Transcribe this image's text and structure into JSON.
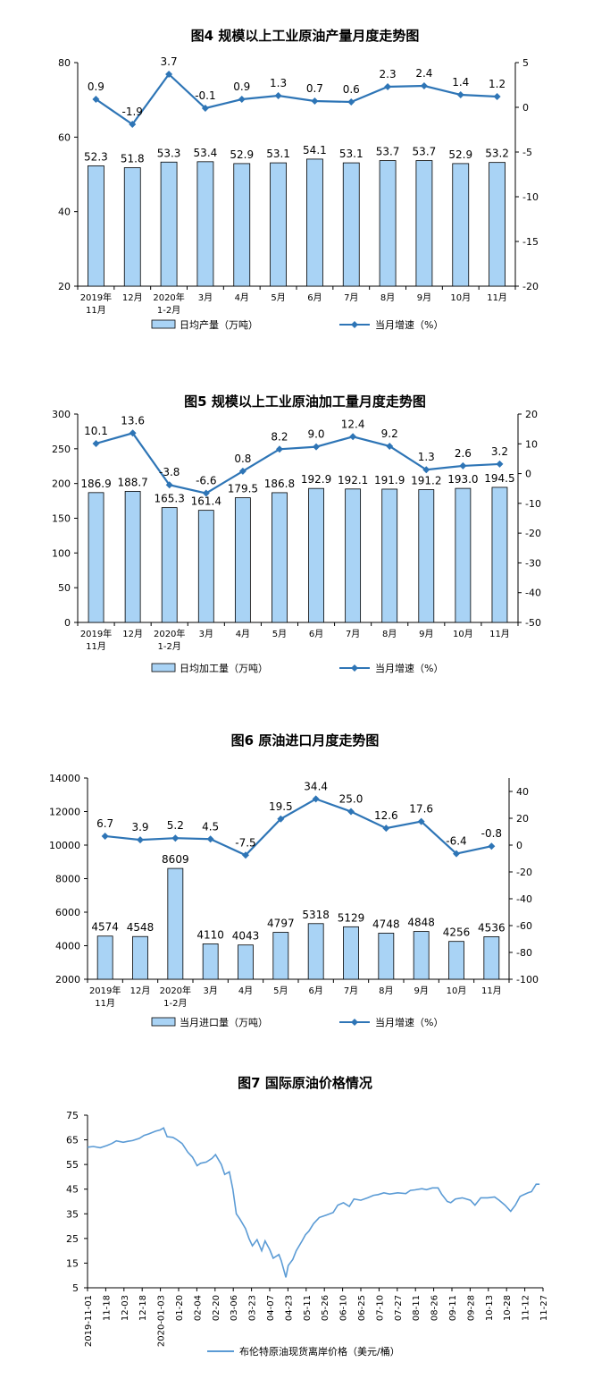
{
  "colors": {
    "bar_fill": "#a9d3f5",
    "bar_stroke": "#000000",
    "line": "#2e75b6",
    "axis": "#000000"
  },
  "charts": [
    {
      "title": "图4  规模以上工业原油产量月度走势图",
      "chart_data": {
        "type": "bar",
        "categories": [
          [
            "2019年",
            "11月"
          ],
          [
            "12月"
          ],
          [
            "2020年",
            "1-2月"
          ],
          [
            "3月"
          ],
          [
            "4月"
          ],
          [
            "5月"
          ],
          [
            "6月"
          ],
          [
            "7月"
          ],
          [
            "8月"
          ],
          [
            "9月"
          ],
          [
            "10月"
          ],
          [
            "11月"
          ]
        ],
        "series": [
          {
            "name": "日均产量（万吨）",
            "type": "bar",
            "axis": "left",
            "values": [
              52.3,
              51.8,
              53.3,
              53.4,
              52.9,
              53.1,
              54.1,
              53.1,
              53.7,
              53.7,
              52.9,
              53.2
            ],
            "labels": [
              "52.3",
              "51.8",
              "53.3",
              "53.4",
              "52.9",
              "53.1",
              "54.1",
              "53.1",
              "53.7",
              "53.7",
              "52.9",
              "53.2"
            ]
          },
          {
            "name": "当月增速（%）",
            "type": "line",
            "axis": "right",
            "values": [
              0.9,
              -1.9,
              3.7,
              -0.1,
              0.9,
              1.3,
              0.7,
              0.6,
              2.3,
              2.4,
              1.4,
              1.2
            ],
            "labels": [
              "0.9",
              "-1.9",
              "3.7",
              "-0.1",
              "0.9",
              "1.3",
              "0.7",
              "0.6",
              "2.3",
              "2.4",
              "1.4",
              "1.2"
            ]
          }
        ],
        "ylim_left": [
          20,
          80
        ],
        "yticks_left": [
          20,
          40,
          60,
          80
        ],
        "ylim_right": [
          -20,
          5
        ],
        "yticks_right": [
          -20,
          -15,
          -10,
          -5,
          0,
          5
        ],
        "legend_position": "bottom"
      }
    },
    {
      "title": "图5  规模以上工业原油加工量月度走势图",
      "chart_data": {
        "type": "bar",
        "categories": [
          [
            "2019年",
            "11月"
          ],
          [
            "12月"
          ],
          [
            "2020年",
            "1-2月"
          ],
          [
            "3月"
          ],
          [
            "4月"
          ],
          [
            "5月"
          ],
          [
            "6月"
          ],
          [
            "7月"
          ],
          [
            "8月"
          ],
          [
            "9月"
          ],
          [
            "10月"
          ],
          [
            "11月"
          ]
        ],
        "series": [
          {
            "name": "日均加工量（万吨）",
            "type": "bar",
            "axis": "left",
            "values": [
              186.9,
              188.7,
              165.3,
              161.4,
              179.5,
              186.8,
              192.9,
              192.1,
              191.9,
              191.2,
              193.0,
              194.5
            ],
            "labels": [
              "186.9",
              "188.7",
              "165.3",
              "161.4",
              "179.5",
              "186.8",
              "192.9",
              "192.1",
              "191.9",
              "191.2",
              "193.0",
              "194.5"
            ]
          },
          {
            "name": "当月增速（%）",
            "type": "line",
            "axis": "right",
            "values": [
              10.1,
              13.6,
              -3.8,
              -6.6,
              0.8,
              8.2,
              9.0,
              12.4,
              9.2,
              1.3,
              2.6,
              3.2
            ],
            "labels": [
              "10.1",
              "13.6",
              "-3.8",
              "-6.6",
              "0.8",
              "8.2",
              "9.0",
              "12.4",
              "9.2",
              "1.3",
              "2.6",
              "3.2"
            ]
          }
        ],
        "ylim_left": [
          0,
          300
        ],
        "yticks_left": [
          0,
          50,
          100,
          150,
          200,
          250,
          300
        ],
        "ylim_right": [
          -50,
          20
        ],
        "yticks_right": [
          -50,
          -40,
          -30,
          -20,
          -10,
          0,
          10,
          20
        ],
        "legend_position": "bottom"
      }
    },
    {
      "title": "图6  原油进口月度走势图",
      "chart_data": {
        "type": "bar",
        "categories": [
          [
            "2019年",
            "11月"
          ],
          [
            "12月"
          ],
          [
            "2020年",
            "1-2月"
          ],
          [
            "3月"
          ],
          [
            "4月"
          ],
          [
            "5月"
          ],
          [
            "6月"
          ],
          [
            "7月"
          ],
          [
            "8月"
          ],
          [
            "9月"
          ],
          [
            "10月"
          ],
          [
            "11月"
          ]
        ],
        "series": [
          {
            "name": "当月进口量（万吨）",
            "type": "bar",
            "axis": "left",
            "values": [
              4574,
              4548,
              8609,
              4110,
              4043,
              4797,
              5318,
              5129,
              4748,
              4848,
              4256,
              4536
            ],
            "labels": [
              "4574",
              "4548",
              "8609",
              "4110",
              "4043",
              "4797",
              "5318",
              "5129",
              "4748",
              "4848",
              "4256",
              "4536"
            ]
          },
          {
            "name": "当月增速（%）",
            "type": "line",
            "axis": "right",
            "values": [
              6.7,
              3.9,
              5.2,
              4.5,
              -7.5,
              19.5,
              34.4,
              25.0,
              12.6,
              17.6,
              -6.4,
              -0.8
            ],
            "labels": [
              "6.7",
              "3.9",
              "5.2",
              "4.5",
              "-7.5",
              "19.5",
              "34.4",
              "25.0",
              "12.6",
              "17.6",
              "-6.4",
              "-0.8"
            ]
          }
        ],
        "ylim_left": [
          2000,
          14000
        ],
        "yticks_left": [
          2000,
          4000,
          6000,
          8000,
          10000,
          12000,
          14000
        ],
        "ylim_right": [
          -100,
          50
        ],
        "yticks_right": [
          -100,
          -80,
          -60,
          -40,
          -20,
          0,
          20,
          40
        ],
        "legend_position": "bottom"
      }
    },
    {
      "title": "图7  国际原油价格情况",
      "chart_data": {
        "type": "line",
        "series": [
          {
            "name": "布伦特原油现货离岸价格（美元/桶）"
          }
        ],
        "x_tick_labels": [
          "2019-11-01",
          "11-18",
          "12-03",
          "12-18",
          "2020-01-03",
          "01-20",
          "02-04",
          "02-20",
          "03-06",
          "03-23",
          "04-07",
          "04-23",
          "05-11",
          "05-26",
          "06-10",
          "06-25",
          "07-10",
          "07-27",
          "08-11",
          "08-26",
          "09-11",
          "09-28",
          "10-13",
          "10-28",
          "11-12",
          "11-27"
        ],
        "x_range": [
          "2019-11-01",
          "2020-11-30"
        ],
        "points": [
          [
            "2019-11-01",
            62.0
          ],
          [
            "2019-11-06",
            62.3
          ],
          [
            "2019-11-12",
            61.8
          ],
          [
            "2019-11-18",
            62.7
          ],
          [
            "2019-11-22",
            63.5
          ],
          [
            "2019-11-26",
            64.6
          ],
          [
            "2019-12-02",
            64.0
          ],
          [
            "2019-12-06",
            64.4
          ],
          [
            "2019-12-10",
            64.7
          ],
          [
            "2019-12-16",
            65.6
          ],
          [
            "2019-12-20",
            66.8
          ],
          [
            "2019-12-24",
            67.4
          ],
          [
            "2019-12-30",
            68.5
          ],
          [
            "2020-01-03",
            69.0
          ],
          [
            "2020-01-06",
            69.8
          ],
          [
            "2020-01-09",
            66.3
          ],
          [
            "2020-01-14",
            66.0
          ],
          [
            "2020-01-17",
            65.2
          ],
          [
            "2020-01-22",
            63.5
          ],
          [
            "2020-01-27",
            60.0
          ],
          [
            "2020-01-31",
            58.0
          ],
          [
            "2020-02-04",
            54.5
          ],
          [
            "2020-02-07",
            55.5
          ],
          [
            "2020-02-12",
            56.0
          ],
          [
            "2020-02-17",
            57.5
          ],
          [
            "2020-02-20",
            59.0
          ],
          [
            "2020-02-25",
            55.0
          ],
          [
            "2020-02-28",
            51.0
          ],
          [
            "2020-03-03",
            52.0
          ],
          [
            "2020-03-06",
            45.0
          ],
          [
            "2020-03-09",
            35.0
          ],
          [
            "2020-03-12",
            33.0
          ],
          [
            "2020-03-17",
            29.0
          ],
          [
            "2020-03-20",
            25.0
          ],
          [
            "2020-03-23",
            22.0
          ],
          [
            "2020-03-27",
            24.5
          ],
          [
            "2020-03-31",
            20.0
          ],
          [
            "2020-04-03",
            24.0
          ],
          [
            "2020-04-07",
            20.5
          ],
          [
            "2020-04-10",
            17.0
          ],
          [
            "2020-04-15",
            18.5
          ],
          [
            "2020-04-17",
            16.0
          ],
          [
            "2020-04-21",
            9.2
          ],
          [
            "2020-04-23",
            14.0
          ],
          [
            "2020-04-27",
            16.5
          ],
          [
            "2020-04-30",
            20.0
          ],
          [
            "2020-05-05",
            24.0
          ],
          [
            "2020-05-08",
            26.5
          ],
          [
            "2020-05-11",
            28.0
          ],
          [
            "2020-05-15",
            31.0
          ],
          [
            "2020-05-20",
            33.5
          ],
          [
            "2020-05-26",
            34.5
          ],
          [
            "2020-06-01",
            35.5
          ],
          [
            "2020-06-05",
            38.5
          ],
          [
            "2020-06-10",
            39.5
          ],
          [
            "2020-06-15",
            38.0
          ],
          [
            "2020-06-19",
            41.0
          ],
          [
            "2020-06-25",
            40.5
          ],
          [
            "2020-07-01",
            41.5
          ],
          [
            "2020-07-06",
            42.5
          ],
          [
            "2020-07-10",
            42.8
          ],
          [
            "2020-07-15",
            43.5
          ],
          [
            "2020-07-20",
            43.0
          ],
          [
            "2020-07-27",
            43.5
          ],
          [
            "2020-08-03",
            43.2
          ],
          [
            "2020-08-07",
            44.5
          ],
          [
            "2020-08-11",
            44.7
          ],
          [
            "2020-08-17",
            45.2
          ],
          [
            "2020-08-21",
            44.8
          ],
          [
            "2020-08-26",
            45.5
          ],
          [
            "2020-08-31",
            45.5
          ],
          [
            "2020-09-03",
            43.0
          ],
          [
            "2020-09-08",
            40.0
          ],
          [
            "2020-09-11",
            39.5
          ],
          [
            "2020-09-15",
            41.0
          ],
          [
            "2020-09-21",
            41.5
          ],
          [
            "2020-09-28",
            40.5
          ],
          [
            "2020-10-02",
            38.5
          ],
          [
            "2020-10-07",
            41.5
          ],
          [
            "2020-10-13",
            41.5
          ],
          [
            "2020-10-19",
            41.8
          ],
          [
            "2020-10-23",
            40.5
          ],
          [
            "2020-10-28",
            38.5
          ],
          [
            "2020-11-02",
            36.0
          ],
          [
            "2020-11-06",
            38.5
          ],
          [
            "2020-11-10",
            42.0
          ],
          [
            "2020-11-12",
            42.5
          ],
          [
            "2020-11-17",
            43.5
          ],
          [
            "2020-11-20",
            44.0
          ],
          [
            "2020-11-24",
            47.0
          ],
          [
            "2020-11-27",
            47.0
          ]
        ],
        "ylim": [
          5,
          75
        ],
        "yticks": [
          5,
          15,
          25,
          35,
          45,
          55,
          65,
          75
        ],
        "legend_position": "bottom"
      }
    }
  ]
}
